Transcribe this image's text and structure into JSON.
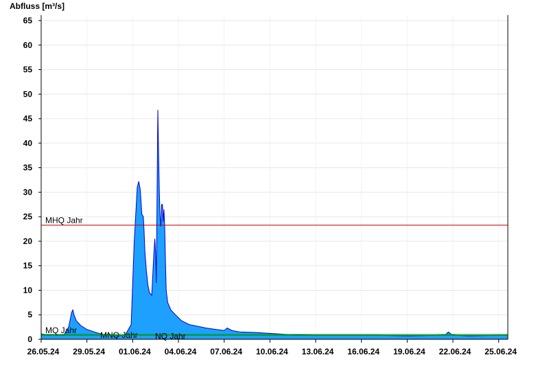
{
  "chart_data": {
    "type": "area",
    "title": "",
    "ylabel": "Abfluss [m³/s]",
    "xlabel": "",
    "ylim": [
      0,
      66
    ],
    "yticks": [
      0,
      5,
      10,
      15,
      20,
      25,
      30,
      35,
      40,
      45,
      50,
      55,
      60,
      65
    ],
    "xlim": [
      0,
      30.6
    ],
    "xticks": [
      {
        "x": 0,
        "label": "26.05.24"
      },
      {
        "x": 3,
        "label": "29.05.24"
      },
      {
        "x": 6,
        "label": "01.06.24"
      },
      {
        "x": 9,
        "label": "04.06.24"
      },
      {
        "x": 12,
        "label": "07.06.24"
      },
      {
        "x": 15,
        "label": "10.06.24"
      },
      {
        "x": 18,
        "label": "13.06.24"
      },
      {
        "x": 21,
        "label": "16.06.24"
      },
      {
        "x": 24,
        "label": "19.06.24"
      },
      {
        "x": 27,
        "label": "22.06.24"
      },
      {
        "x": 30,
        "label": "25.06.24"
      }
    ],
    "grid": true,
    "colors": {
      "fill": "#1ea0ff",
      "line": "#0000cc",
      "mhq": "#cc0000",
      "mq": "#009900",
      "nq": "#009900"
    },
    "reference_lines": [
      {
        "label": "MHQ Jahr",
        "value": 23.3
      },
      {
        "label": "MQ Jahr",
        "value": 1.0
      },
      {
        "label": "MNQ Jahr",
        "value": 0.4
      },
      {
        "label": "NQ Jahr",
        "value": 0.8
      }
    ],
    "series": [
      {
        "x": [
          -0.3,
          0.5,
          1.0,
          1.5,
          1.8,
          2.0,
          2.08,
          2.15,
          2.3,
          2.6,
          3.0,
          3.5,
          4.0,
          4.5,
          5.0,
          5.5,
          5.9,
          6.1,
          6.3,
          6.4,
          6.5,
          6.6,
          6.7,
          6.75,
          6.8,
          6.9,
          7.0,
          7.1,
          7.25,
          7.4,
          7.45,
          7.5,
          7.55,
          7.6,
          7.65,
          7.7,
          7.75,
          7.8,
          7.85,
          7.9,
          7.95,
          8.0,
          8.05,
          8.1,
          8.15,
          8.2,
          8.3,
          8.5,
          8.8,
          9.2,
          9.7,
          10.2,
          10.8,
          11.5,
          12.0,
          12.2,
          12.5,
          13.0,
          14.0,
          15.0,
          16.0,
          17.0,
          18.0,
          20.0,
          22.0,
          24.0,
          26.0,
          26.5,
          26.7,
          26.9,
          27.2,
          28.0,
          30.0,
          30.6
        ],
        "y": [
          1.1,
          0.9,
          0.8,
          0.9,
          2.5,
          5.5,
          6.0,
          5.0,
          3.8,
          2.8,
          2.0,
          1.5,
          1.0,
          0.8,
          0.7,
          0.8,
          3.0,
          20.0,
          31.0,
          32.2,
          30.5,
          25.5,
          25.0,
          22.0,
          18.0,
          14.0,
          11.0,
          9.5,
          9.0,
          18.0,
          20.5,
          18.0,
          11.5,
          30.0,
          46.8,
          38.0,
          30.0,
          25.0,
          23.0,
          27.5,
          27.5,
          24.0,
          26.5,
          23.0,
          16.0,
          10.0,
          7.5,
          6.0,
          5.0,
          3.8,
          3.0,
          2.7,
          2.3,
          2.0,
          1.8,
          2.3,
          1.8,
          1.5,
          1.4,
          1.2,
          1.0,
          0.9,
          0.8,
          0.8,
          0.8,
          0.7,
          0.8,
          0.9,
          1.5,
          1.0,
          0.8,
          0.7,
          0.8,
          0.8
        ]
      }
    ]
  }
}
